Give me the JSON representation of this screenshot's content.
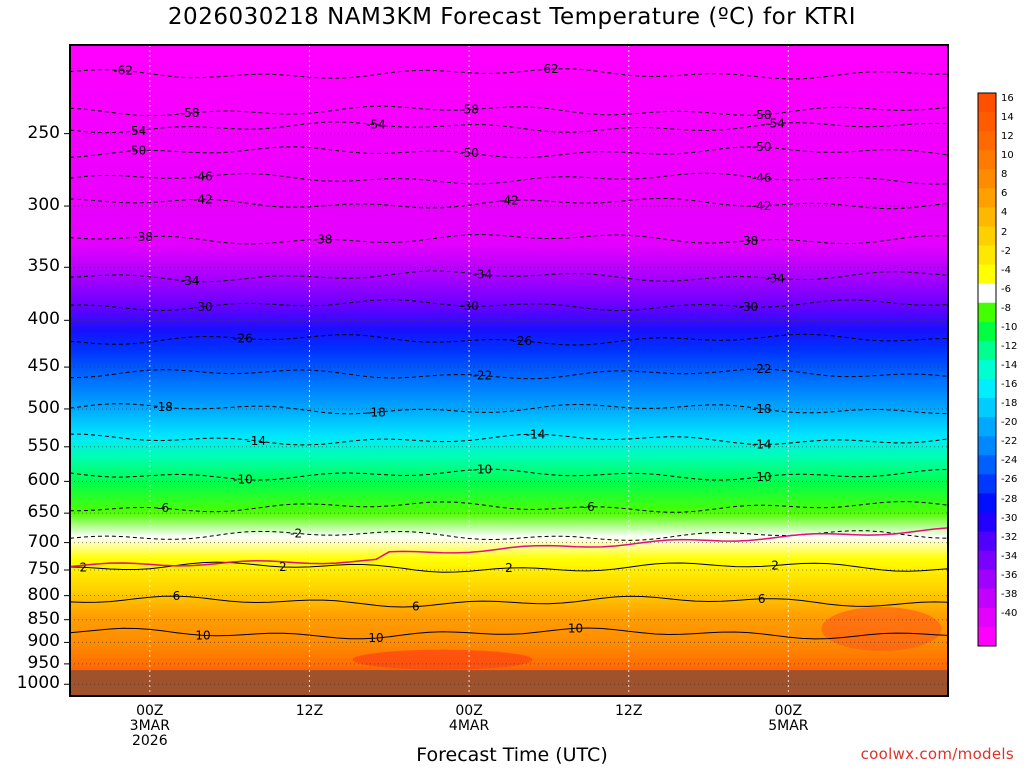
{
  "chart_data": {
    "type": "heatmap",
    "title": "2026030218 NAM3KM Forecast Temperature (ºC) for KTRI",
    "xlabel": "Forecast Time (UTC)",
    "credit": "coolwx.com/models",
    "y_axis": {
      "scale": "log-pressure",
      "inverted": true,
      "range_hpa": [
        200,
        1030
      ],
      "ticks": [
        "250",
        "300",
        "350",
        "400",
        "450",
        "500",
        "550",
        "600",
        "650",
        "700",
        "750",
        "800",
        "850",
        "900",
        "950",
        "1000"
      ]
    },
    "x_axis": {
      "range_hours": [
        -6,
        60
      ],
      "ticks": [
        {
          "hour": 0,
          "lines": [
            "00Z",
            "3MAR",
            "2026"
          ]
        },
        {
          "hour": 12,
          "lines": [
            "12Z"
          ]
        },
        {
          "hour": 24,
          "lines": [
            "00Z",
            "4MAR"
          ]
        },
        {
          "hour": 36,
          "lines": [
            "12Z"
          ]
        },
        {
          "hour": 48,
          "lines": [
            "00Z",
            "5MAR"
          ]
        }
      ]
    },
    "colorbar": {
      "labels": [
        "16",
        "14",
        "12",
        "10",
        "8",
        "6",
        "4",
        "2",
        "-2",
        "-4",
        "-6",
        "-8",
        "-10",
        "-12",
        "-14",
        "-16",
        "-18",
        "-20",
        "-22",
        "-24",
        "-26",
        "-28",
        "-30",
        "-32",
        "-34",
        "-36",
        "-38",
        "-40"
      ],
      "colors": [
        "#ff4f00",
        "#ff5b00",
        "#ff6a00",
        "#ff7a00",
        "#ff8c00",
        "#ffa000",
        "#ffb800",
        "#ffd000",
        "#ffe800",
        "#ffff00",
        "#ffffff",
        "#44ff00",
        "#00ff40",
        "#00ff90",
        "#00ffd0",
        "#00eeff",
        "#00ccff",
        "#00a8ff",
        "#0088ff",
        "#0060ff",
        "#0038ff",
        "#0010ff",
        "#2200ff",
        "#5000ff",
        "#7a00ff",
        "#a000ff",
        "#c400ff",
        "#e400ff",
        "#ff00ff"
      ]
    },
    "contours": [
      {
        "value": -62,
        "label": "-62",
        "p": 215,
        "labels_at": [
          -2,
          30
        ]
      },
      {
        "value": -58,
        "label": "-58",
        "p": 236,
        "labels_at": [
          3,
          24,
          46
        ]
      },
      {
        "value": -54,
        "label": "-54",
        "p": 246,
        "labels_at": [
          -1,
          17,
          47
        ]
      },
      {
        "value": -50,
        "label": "-50",
        "p": 262,
        "labels_at": [
          -1,
          24,
          46
        ]
      },
      {
        "value": -46,
        "label": "-46",
        "p": 280,
        "labels_at": [
          4,
          46
        ]
      },
      {
        "value": -42,
        "label": "-42",
        "p": 298,
        "labels_at": [
          4,
          27,
          46
        ]
      },
      {
        "value": -38,
        "label": "-38",
        "p": 326,
        "labels_at": [
          -0.5,
          13,
          45
        ]
      },
      {
        "value": -34,
        "label": "-34",
        "p": 358,
        "labels_at": [
          3,
          25,
          47
        ]
      },
      {
        "value": -30,
        "label": "-30",
        "p": 385,
        "labels_at": [
          4,
          24,
          45
        ]
      },
      {
        "value": -26,
        "label": "-26",
        "p": 420,
        "labels_at": [
          7,
          28
        ]
      },
      {
        "value": -22,
        "label": "-22",
        "p": 458,
        "labels_at": [
          25,
          46
        ]
      },
      {
        "value": -18,
        "label": "-18",
        "p": 500,
        "labels_at": [
          1,
          17,
          46
        ]
      },
      {
        "value": -14,
        "label": "-14",
        "p": 540,
        "labels_at": [
          8,
          29,
          46
        ]
      },
      {
        "value": -10,
        "label": "-10",
        "p": 590,
        "labels_at": [
          7,
          25,
          46
        ]
      },
      {
        "value": -6,
        "label": "-6",
        "p": 640,
        "labels_at": [
          1,
          33
        ]
      },
      {
        "value": -2,
        "label": "-2",
        "p": 688,
        "labels_at": [
          11
        ]
      },
      {
        "value": 2,
        "label": "2",
        "p": 745,
        "labels_at": [
          -5,
          10,
          27,
          47
        ]
      },
      {
        "value": 6,
        "label": "6",
        "p": 812,
        "labels_at": [
          2,
          20,
          46
        ]
      },
      {
        "value": 10,
        "label": "10",
        "p": 880,
        "labels_at": [
          4,
          17,
          32
        ]
      }
    ]
  }
}
